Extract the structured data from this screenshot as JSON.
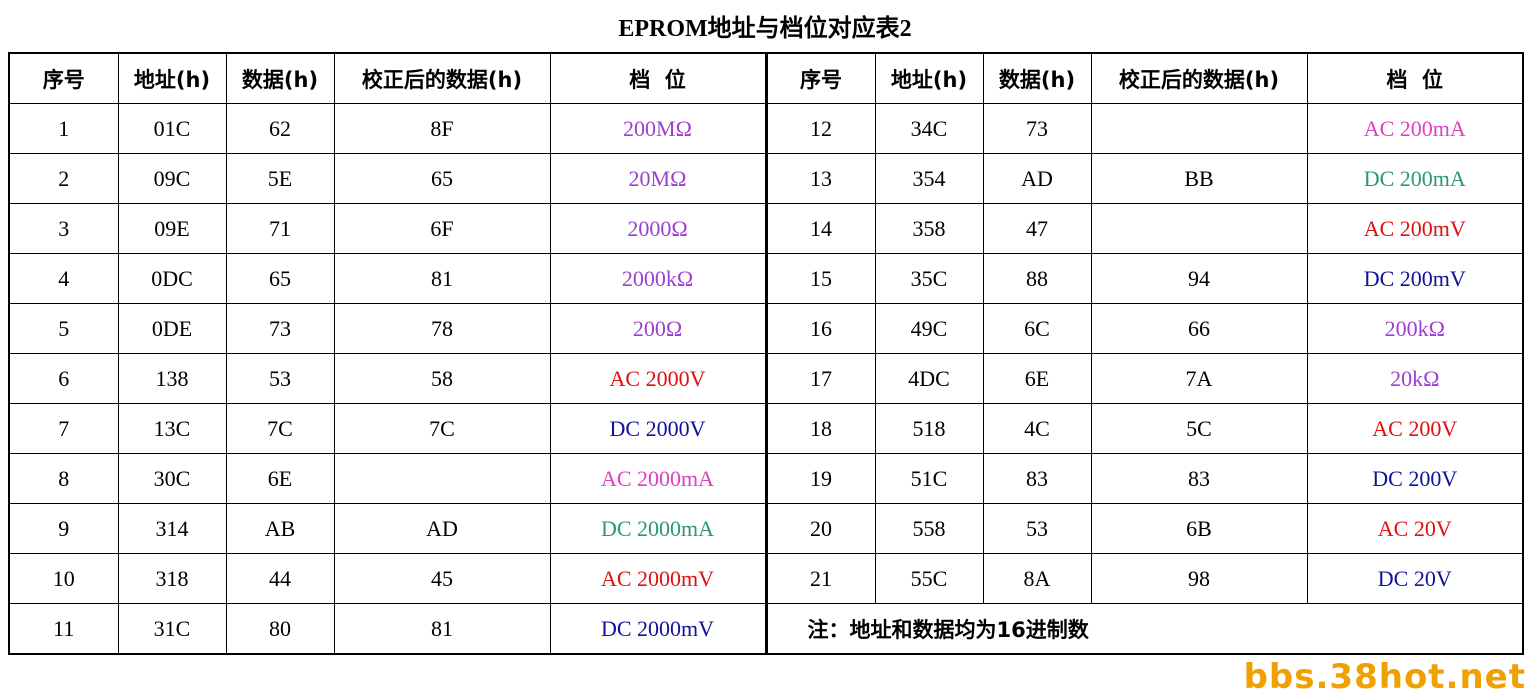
{
  "title": "EPROM地址与档位对应表2",
  "headers": [
    "序号",
    "地址(h)",
    "数据(h)",
    "校正后的数据(h)",
    "档  位",
    "序号",
    "地址(h)",
    "数据(h)",
    "校正后的数据(h)",
    "档  位"
  ],
  "colors": {
    "purple": "#9b40d0",
    "magenta": "#e040c0",
    "green": "#2a9a6a",
    "red": "#e01010",
    "blue": "#10129a"
  },
  "rows": [
    {
      "left": {
        "no": "1",
        "addr": "01C",
        "data": "62",
        "corrected": "8F",
        "range": "200MΩ",
        "color": "purple"
      },
      "right": {
        "no": "12",
        "addr": "34C",
        "data": "73",
        "corrected": "",
        "range": "AC 200mA",
        "color": "magenta"
      }
    },
    {
      "left": {
        "no": "2",
        "addr": "09C",
        "data": "5E",
        "corrected": "65",
        "range": "20MΩ",
        "color": "purple"
      },
      "right": {
        "no": "13",
        "addr": "354",
        "data": "AD",
        "corrected": "BB",
        "range": "DC 200mA",
        "color": "green"
      }
    },
    {
      "left": {
        "no": "3",
        "addr": "09E",
        "data": "71",
        "corrected": "6F",
        "range": "2000Ω",
        "color": "purple"
      },
      "right": {
        "no": "14",
        "addr": "358",
        "data": "47",
        "corrected": "",
        "range": "AC 200mV",
        "color": "red"
      }
    },
    {
      "left": {
        "no": "4",
        "addr": "0DC",
        "data": "65",
        "corrected": "81",
        "range": "2000kΩ",
        "color": "purple"
      },
      "right": {
        "no": "15",
        "addr": "35C",
        "data": "88",
        "corrected": "94",
        "range": "DC 200mV",
        "color": "blue"
      }
    },
    {
      "left": {
        "no": "5",
        "addr": "0DE",
        "data": "73",
        "corrected": "78",
        "range": "200Ω",
        "color": "purple"
      },
      "right": {
        "no": "16",
        "addr": "49C",
        "data": "6C",
        "corrected": "66",
        "range": "200kΩ",
        "color": "purple"
      }
    },
    {
      "left": {
        "no": "6",
        "addr": "138",
        "data": "53",
        "corrected": "58",
        "range": "AC 2000V",
        "color": "red"
      },
      "right": {
        "no": "17",
        "addr": "4DC",
        "data": "6E",
        "corrected": "7A",
        "range": "20kΩ",
        "color": "purple"
      }
    },
    {
      "left": {
        "no": "7",
        "addr": "13C",
        "data": "7C",
        "corrected": "7C",
        "range": "DC 2000V",
        "color": "blue"
      },
      "right": {
        "no": "18",
        "addr": "518",
        "data": "4C",
        "corrected": "5C",
        "range": "AC 200V",
        "color": "red"
      }
    },
    {
      "left": {
        "no": "8",
        "addr": "30C",
        "data": "6E",
        "corrected": "",
        "range": "AC 2000mA",
        "color": "magenta"
      },
      "right": {
        "no": "19",
        "addr": "51C",
        "data": "83",
        "corrected": "83",
        "range": "DC 200V",
        "color": "blue"
      }
    },
    {
      "left": {
        "no": "9",
        "addr": "314",
        "data": "AB",
        "corrected": "AD",
        "range": "DC 2000mA",
        "color": "green"
      },
      "right": {
        "no": "20",
        "addr": "558",
        "data": "53",
        "corrected": "6B",
        "range": "AC 20V",
        "color": "red"
      }
    },
    {
      "left": {
        "no": "10",
        "addr": "318",
        "data": "44",
        "corrected": "45",
        "range": "AC 2000mV",
        "color": "red"
      },
      "right": {
        "no": "21",
        "addr": "55C",
        "data": "8A",
        "corrected": "98",
        "range": "DC 20V",
        "color": "blue"
      }
    }
  ],
  "last_row": {
    "no": "11",
    "addr": "31C",
    "data": "80",
    "corrected": "81",
    "range": "DC 2000mV",
    "color": "blue"
  },
  "note": "注：地址和数据均为16进制数",
  "watermark": "bbs.38hot.net"
}
